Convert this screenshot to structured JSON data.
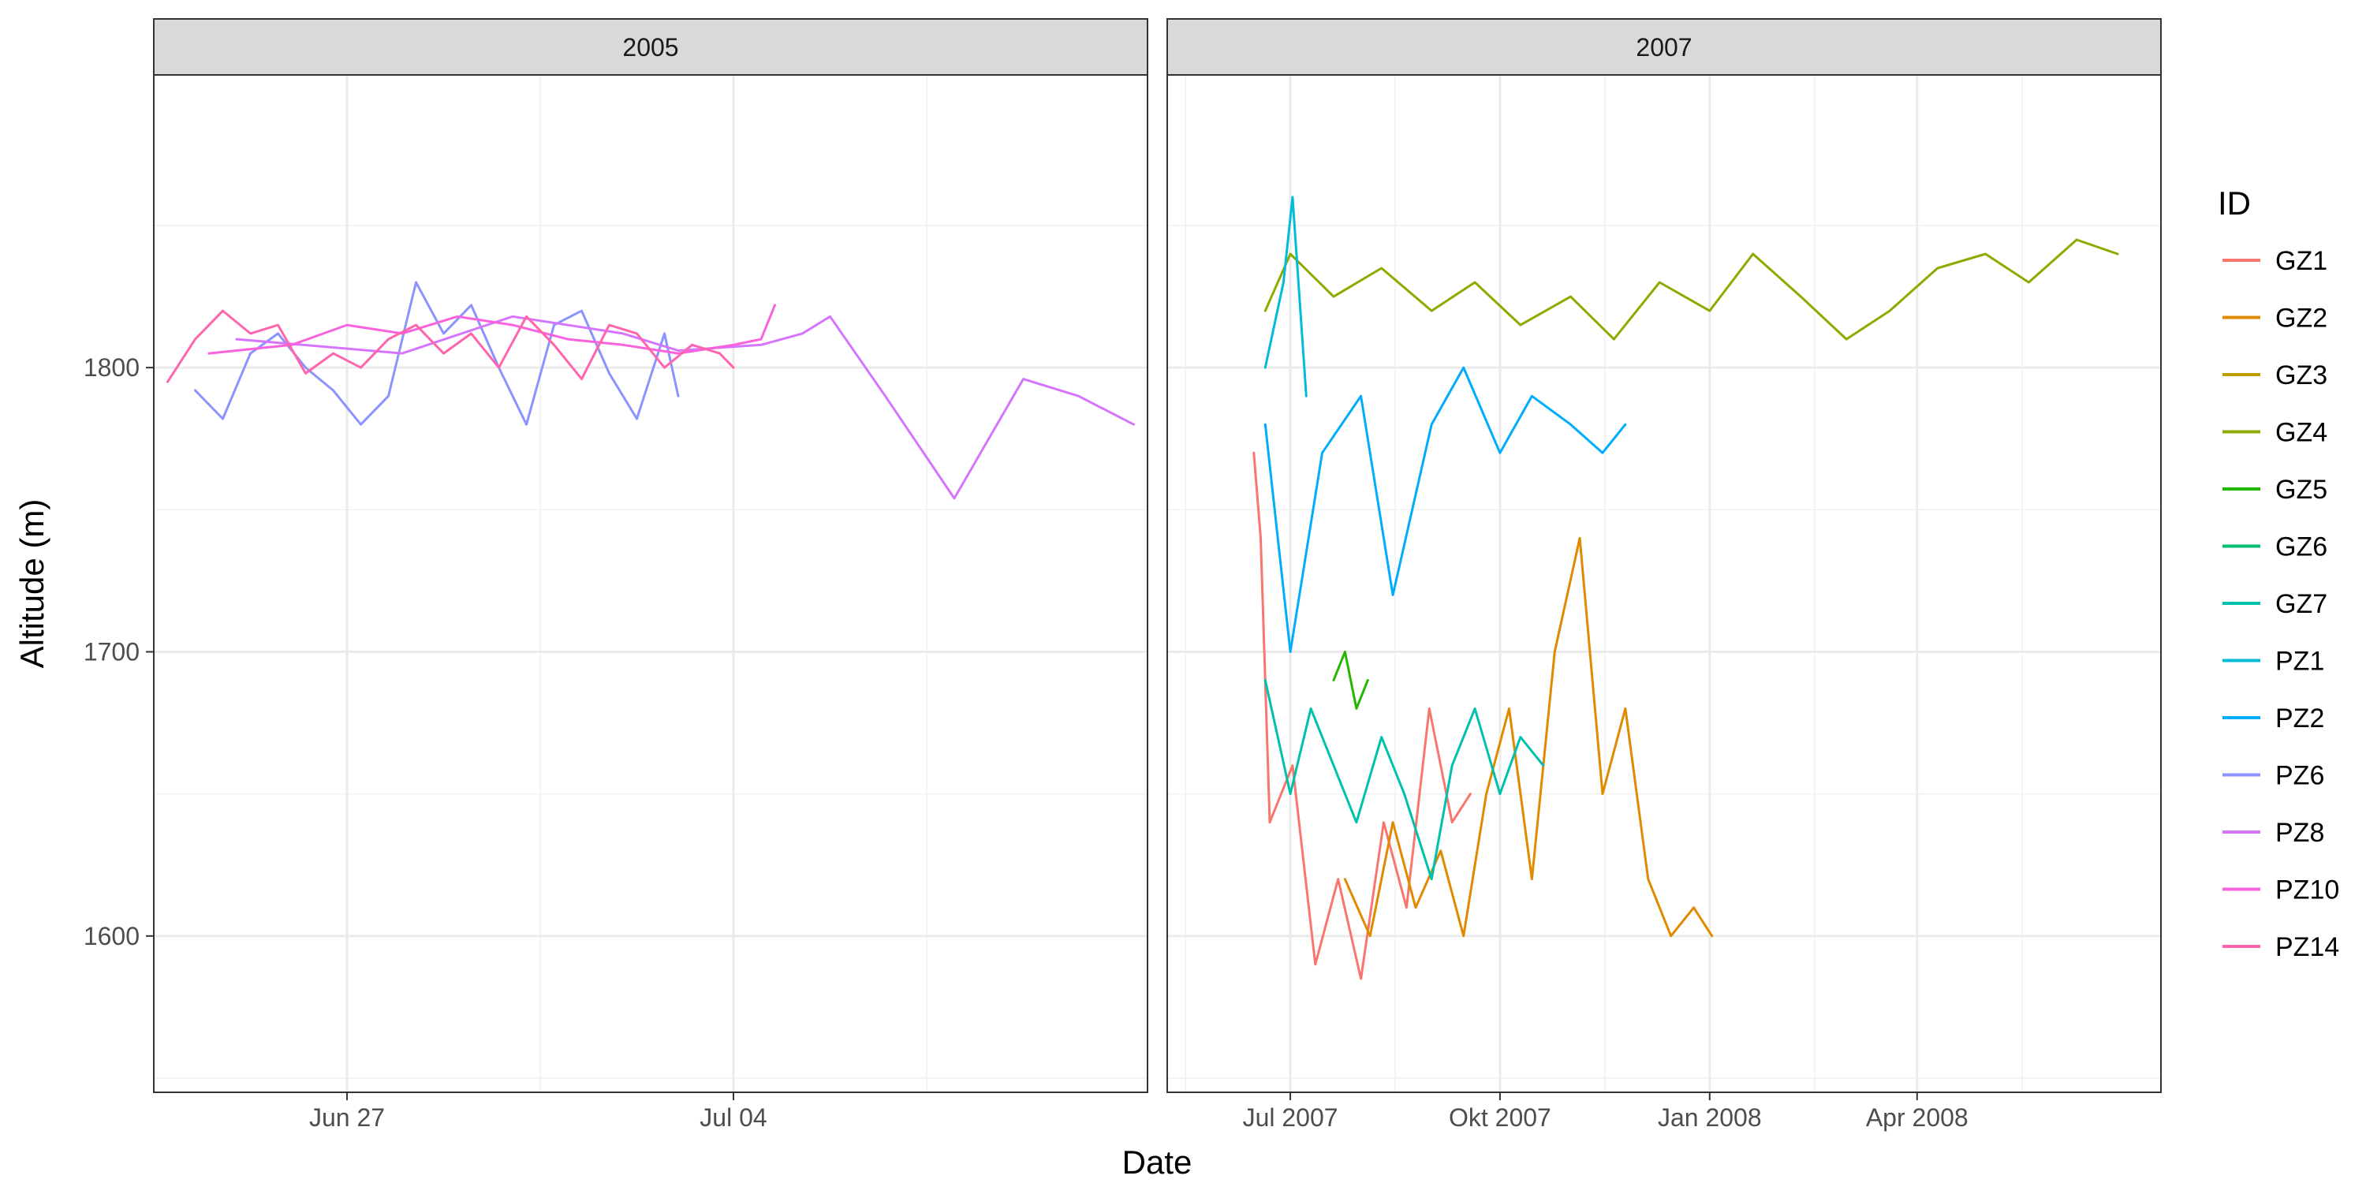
{
  "chart_data": {
    "type": "line",
    "xlabel": "Date",
    "ylabel": "Altitude (m)",
    "ylim": [
      1545,
      1903
    ],
    "y_ticks": [
      1600,
      1700,
      1800
    ],
    "grid": true,
    "legend": {
      "title": "ID",
      "position": "right",
      "entries": [
        {
          "name": "GZ1",
          "color": "#F8766D"
        },
        {
          "name": "GZ2",
          "color": "#E18A00"
        },
        {
          "name": "GZ3",
          "color": "#BE9C00"
        },
        {
          "name": "GZ4",
          "color": "#8CAB00"
        },
        {
          "name": "GZ5",
          "color": "#24B700"
        },
        {
          "name": "GZ6",
          "color": "#00BE70"
        },
        {
          "name": "GZ7",
          "color": "#00C1AB"
        },
        {
          "name": "PZ1",
          "color": "#00BBDA"
        },
        {
          "name": "PZ2",
          "color": "#00ACFC"
        },
        {
          "name": "PZ6",
          "color": "#8B93FF"
        },
        {
          "name": "PZ8",
          "color": "#D575FE"
        },
        {
          "name": "PZ10",
          "color": "#F962DD"
        },
        {
          "name": "PZ14",
          "color": "#FF65AC"
        }
      ]
    },
    "panels": [
      {
        "strip": "2005",
        "xlim": [
          "2005-06-23T12:00",
          "2005-07-11T12:00"
        ],
        "x_ticks": [
          {
            "value": "2005-06-27",
            "label": "Jun 27"
          },
          {
            "value": "2005-07-04",
            "label": "Jul 04"
          }
        ],
        "series": [
          {
            "name": "PZ6",
            "x": [
              "2005-06-24T06:00",
              "2005-06-24T18:00",
              "2005-06-25T06:00",
              "2005-06-25T18:00",
              "2005-06-26T06:00",
              "2005-06-26T18:00",
              "2005-06-27T06:00",
              "2005-06-27T18:00",
              "2005-06-28T06:00",
              "2005-06-28T18:00",
              "2005-06-29T06:00",
              "2005-06-29T18:00",
              "2005-06-30T06:00",
              "2005-06-30T18:00",
              "2005-07-01T06:00",
              "2005-07-01T18:00",
              "2005-07-02T06:00",
              "2005-07-02T18:00",
              "2005-07-03T00:00"
            ],
            "y": [
              1792,
              1782,
              1805,
              1812,
              1800,
              1792,
              1780,
              1790,
              1830,
              1812,
              1822,
              1800,
              1780,
              1815,
              1820,
              1798,
              1782,
              1812,
              1790
            ]
          },
          {
            "name": "PZ8",
            "x": [
              "2005-06-25T00:00",
              "2005-06-28T00:00",
              "2005-06-30T00:00",
              "2005-07-02T00:00",
              "2005-07-03T00:00",
              "2005-07-04T12:00",
              "2005-07-05T06:00",
              "2005-07-05T18:00",
              "2005-07-06T18:00",
              "2005-07-08T00:00",
              "2005-07-09T06:00",
              "2005-07-10T06:00",
              "2005-07-11T06:00"
            ],
            "y": [
              1810,
              1805,
              1818,
              1812,
              1806,
              1808,
              1812,
              1818,
              1790,
              1754,
              1796,
              1790,
              1780
            ]
          },
          {
            "name": "PZ10",
            "x": [
              "2005-06-24T12:00",
              "2005-06-26T00:00",
              "2005-06-27T00:00",
              "2005-06-28T00:00",
              "2005-06-29T00:00",
              "2005-06-30T00:00",
              "2005-07-01T00:00",
              "2005-07-02T00:00",
              "2005-07-03T00:00",
              "2005-07-04T00:00",
              "2005-07-04T12:00",
              "2005-07-04T18:00"
            ],
            "y": [
              1805,
              1808,
              1815,
              1812,
              1818,
              1815,
              1810,
              1808,
              1805,
              1808,
              1810,
              1822
            ]
          },
          {
            "name": "PZ14",
            "x": [
              "2005-06-23T18:00",
              "2005-06-24T06:00",
              "2005-06-24T18:00",
              "2005-06-25T06:00",
              "2005-06-25T18:00",
              "2005-06-26T06:00",
              "2005-06-26T18:00",
              "2005-06-27T06:00",
              "2005-06-27T18:00",
              "2005-06-28T06:00",
              "2005-06-28T18:00",
              "2005-06-29T06:00",
              "2005-06-29T18:00",
              "2005-06-30T06:00",
              "2005-06-30T18:00",
              "2005-07-01T06:00",
              "2005-07-01T18:00",
              "2005-07-02T06:00",
              "2005-07-02T18:00",
              "2005-07-03T06:00",
              "2005-07-03T18:00",
              "2005-07-04T00:00"
            ],
            "y": [
              1795,
              1810,
              1820,
              1812,
              1815,
              1798,
              1805,
              1800,
              1810,
              1815,
              1805,
              1812,
              1800,
              1818,
              1808,
              1796,
              1815,
              1812,
              1800,
              1808,
              1805,
              1800
            ]
          }
        ]
      },
      {
        "strip": "2007",
        "xlim": [
          "2007-05-08",
          "2008-07-17"
        ],
        "x_ticks": [
          {
            "value": "2007-07-01",
            "label": "Jul 2007"
          },
          {
            "value": "2007-10-01",
            "label": "Okt 2007"
          },
          {
            "value": "2008-01-01",
            "label": "Jan 2008"
          },
          {
            "value": "2008-04-01",
            "label": "Apr 2008"
          }
        ],
        "series": [
          {
            "name": "GZ1",
            "x": [
              "2007-06-15",
              "2007-06-18",
              "2007-06-22",
              "2007-07-02",
              "2007-07-12",
              "2007-07-22",
              "2007-08-01",
              "2007-08-11",
              "2007-08-21",
              "2007-08-31",
              "2007-09-10",
              "2007-09-18"
            ],
            "y": [
              1770,
              1740,
              1640,
              1660,
              1590,
              1620,
              1585,
              1640,
              1610,
              1680,
              1640,
              1650
            ]
          },
          {
            "name": "GZ2",
            "x": [
              "2007-07-25",
              "2007-08-05",
              "2007-08-15",
              "2007-08-25",
              "2007-09-05",
              "2007-09-15",
              "2007-09-25",
              "2007-10-05",
              "2007-10-15",
              "2007-10-25",
              "2007-11-05",
              "2007-11-15",
              "2007-11-25",
              "2007-12-05",
              "2007-12-15",
              "2007-12-25",
              "2008-01-02"
            ],
            "y": [
              1620,
              1600,
              1640,
              1610,
              1630,
              1600,
              1650,
              1680,
              1620,
              1700,
              1740,
              1650,
              1680,
              1620,
              1600,
              1610,
              1600
            ]
          },
          {
            "name": "GZ4",
            "x": [
              "2007-06-20",
              "2007-07-01",
              "2007-07-20",
              "2007-08-10",
              "2007-09-01",
              "2007-09-20",
              "2007-10-10",
              "2007-11-01",
              "2007-11-20",
              "2007-12-10",
              "2008-01-01",
              "2008-01-20",
              "2008-02-10",
              "2008-03-01",
              "2008-03-20",
              "2008-04-10",
              "2008-05-01",
              "2008-05-20",
              "2008-06-10",
              "2008-06-28"
            ],
            "y": [
              1820,
              1840,
              1825,
              1835,
              1820,
              1830,
              1815,
              1825,
              1810,
              1830,
              1820,
              1840,
              1825,
              1810,
              1820,
              1835,
              1840,
              1830,
              1845,
              1840
            ]
          },
          {
            "name": "GZ5",
            "x": [
              "2007-07-20",
              "2007-07-25",
              "2007-07-30",
              "2007-08-04"
            ],
            "y": [
              1690,
              1700,
              1680,
              1690
            ]
          },
          {
            "name": "GZ7",
            "x": [
              "2007-06-20",
              "2007-07-01",
              "2007-07-10",
              "2007-07-20",
              "2007-07-30",
              "2007-08-10",
              "2007-08-20",
              "2007-09-01",
              "2007-09-10",
              "2007-09-20",
              "2007-10-01",
              "2007-10-10",
              "2007-10-20"
            ],
            "y": [
              1690,
              1650,
              1680,
              1660,
              1640,
              1670,
              1650,
              1620,
              1660,
              1680,
              1650,
              1670,
              1660
            ]
          },
          {
            "name": "PZ1",
            "x": [
              "2007-06-20",
              "2007-06-28",
              "2007-07-02",
              "2007-07-08"
            ],
            "y": [
              1800,
              1830,
              1860,
              1790
            ]
          },
          {
            "name": "PZ2",
            "x": [
              "2007-06-20",
              "2007-07-01",
              "2007-07-15",
              "2007-08-01",
              "2007-08-15",
              "2007-09-01",
              "2007-09-15",
              "2007-10-01",
              "2007-10-15",
              "2007-11-01",
              "2007-11-15",
              "2007-11-25"
            ],
            "y": [
              1780,
              1700,
              1770,
              1790,
              1720,
              1780,
              1800,
              1770,
              1790,
              1780,
              1770,
              1780
            ]
          }
        ]
      }
    ]
  }
}
